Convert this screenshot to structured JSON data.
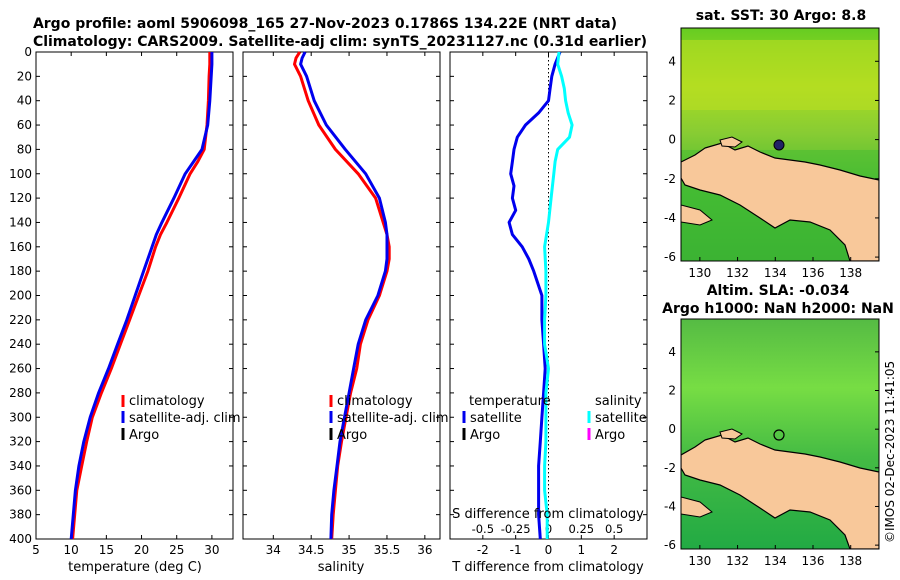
{
  "chart_data": {
    "type": "line",
    "title_line1": "Argo profile: aoml 5906098_165 27-Nov-2023 0.1786S 134.22E (NRT data)",
    "title_line2": "Climatology: CARS2009. Satellite-adj clim: synTS_20231127.nc (0.31d earlier)",
    "depth_ticks": [
      0,
      20,
      40,
      60,
      80,
      100,
      120,
      140,
      160,
      180,
      200,
      220,
      240,
      260,
      280,
      300,
      320,
      340,
      360,
      380,
      400
    ],
    "colors": {
      "climatology": "#ff0000",
      "satellite": "#0000ee",
      "argo": "#000000",
      "sat_salinity": "#00ffff",
      "argo_salinity": "#ff00ff"
    },
    "panels": [
      {
        "name": "temperature",
        "xlabel": "temperature (deg C)",
        "xlim": [
          5,
          33
        ],
        "ylim": [
          0,
          400
        ],
        "xticks": [
          5,
          10,
          15,
          20,
          25,
          30
        ],
        "legend": [
          "climatology",
          "satellite-adj. clim",
          "Argo"
        ],
        "series": [
          {
            "name": "climatology",
            "color": "#ff0000",
            "depth": [
              0,
              10,
              20,
              40,
              60,
              80,
              90,
              100,
              120,
              140,
              150,
              160,
              180,
              200,
              220,
              240,
              260,
              280,
              300,
              320,
              340,
              360,
              380,
              400
            ],
            "values": [
              29.7,
              29.7,
              29.6,
              29.5,
              29.3,
              28.9,
              28.0,
              26.9,
              25.3,
              23.6,
              22.7,
              22.0,
              20.9,
              19.6,
              18.3,
              17.0,
              15.7,
              14.3,
              13.0,
              12.2,
              11.5,
              10.8,
              10.5,
              10.2
            ]
          },
          {
            "name": "satellite",
            "color": "#0000ee",
            "depth": [
              0,
              10,
              20,
              40,
              60,
              80,
              90,
              100,
              120,
              140,
              150,
              160,
              180,
              200,
              220,
              240,
              260,
              280,
              300,
              320,
              340,
              360,
              380,
              400
            ],
            "values": [
              30.0,
              30.0,
              29.9,
              29.7,
              29.4,
              28.6,
              27.4,
              26.2,
              24.6,
              22.9,
              22.1,
              21.5,
              20.3,
              19.1,
              17.9,
              16.6,
              15.3,
              13.9,
              12.7,
              11.8,
              11.1,
              10.6,
              10.3,
              10.0
            ]
          }
        ]
      },
      {
        "name": "salinity",
        "xlabel": "salinity",
        "xlim": [
          33.6,
          36.2
        ],
        "ylim": [
          0,
          400
        ],
        "xticks": [
          34,
          34.5,
          35,
          35.5,
          36
        ],
        "xtick_labels": [
          "34",
          "34.5",
          "35",
          "35.5",
          "36"
        ],
        "legend": [
          "climatology",
          "satellite-adj. clim",
          "Argo"
        ],
        "series": [
          {
            "name": "climatology",
            "color": "#ff0000",
            "depth": [
              0,
              5,
              10,
              20,
              40,
              60,
              80,
              100,
              120,
              140,
              150,
              160,
              170,
              180,
              200,
              220,
              240,
              260,
              280,
              300,
              320,
              340,
              360,
              380,
              400
            ],
            "values": [
              34.35,
              34.3,
              34.28,
              34.36,
              34.46,
              34.6,
              34.82,
              35.12,
              35.35,
              35.45,
              35.5,
              35.53,
              35.53,
              35.5,
              35.4,
              35.25,
              35.15,
              35.1,
              35.02,
              34.96,
              34.9,
              34.85,
              34.82,
              34.79,
              34.77
            ]
          },
          {
            "name": "satellite",
            "color": "#0000ee",
            "depth": [
              0,
              5,
              10,
              20,
              40,
              60,
              80,
              100,
              120,
              140,
              150,
              160,
              170,
              180,
              200,
              220,
              240,
              260,
              280,
              300,
              320,
              340,
              360,
              380,
              400
            ],
            "values": [
              34.42,
              34.38,
              34.36,
              34.44,
              34.54,
              34.7,
              34.95,
              35.22,
              35.4,
              35.48,
              35.5,
              35.5,
              35.5,
              35.48,
              35.38,
              35.22,
              35.12,
              35.06,
              35.0,
              34.94,
              34.88,
              34.84,
              34.8,
              34.77,
              34.76
            ]
          }
        ]
      },
      {
        "name": "difference",
        "xlabel": "T difference from climatology",
        "xlabel_top": "S difference from climatology",
        "xlim": [
          -3,
          3
        ],
        "ylim": [
          0,
          400
        ],
        "xticks": [
          -2,
          -1,
          0,
          1,
          2
        ],
        "xtick_labels": [
          "-2",
          "-1",
          "0",
          "1",
          "2"
        ],
        "s_scale": 4,
        "s_ticks": [
          -0.5,
          -0.25,
          0,
          0.25,
          0.5
        ],
        "s_tick_labels": [
          "-0.5",
          "-0.25",
          "0",
          "0.25",
          "0.5"
        ],
        "legend_left_title": "temperature",
        "legend_right_title": "salinity",
        "legend_left": [
          "satellite",
          "Argo"
        ],
        "legend_right": [
          "satellite",
          "Argo"
        ],
        "series": [
          {
            "name": "T satellite",
            "color": "#0000ee",
            "depth": [
              0,
              10,
              20,
              30,
              40,
              50,
              60,
              70,
              80,
              90,
              100,
              110,
              120,
              130,
              140,
              150,
              160,
              170,
              180,
              200,
              220,
              240,
              260,
              280,
              300,
              320,
              340,
              360,
              380,
              400
            ],
            "values": [
              0.35,
              0.2,
              0.1,
              0.05,
              0.0,
              -0.3,
              -0.7,
              -0.95,
              -1.05,
              -1.1,
              -1.15,
              -1.05,
              -1.1,
              -1.0,
              -1.2,
              -1.1,
              -0.8,
              -0.6,
              -0.45,
              -0.2,
              -0.2,
              -0.15,
              -0.1,
              -0.15,
              -0.2,
              -0.25,
              -0.3,
              -0.3,
              -0.3,
              -0.25
            ]
          },
          {
            "name": "S satellite",
            "color": "#00ffff",
            "depth": [
              0,
              10,
              20,
              30,
              40,
              50,
              60,
              70,
              80,
              90,
              100,
              120,
              140,
              160,
              180,
              200,
              220,
              240,
              260,
              280,
              300,
              320,
              340,
              360,
              380,
              400
            ],
            "values": [
              0.08,
              0.07,
              0.1,
              0.12,
              0.13,
              0.15,
              0.18,
              0.16,
              0.07,
              0.05,
              0.04,
              0.02,
              0.0,
              -0.03,
              -0.02,
              -0.02,
              -0.03,
              -0.03,
              0.0,
              -0.02,
              -0.02,
              -0.02,
              -0.03,
              -0.03,
              -0.01,
              -0.01
            ]
          }
        ]
      }
    ],
    "maps": [
      {
        "title": "sat. SST: 30 Argo: 8.8",
        "xticks": [
          130,
          132,
          134,
          136,
          138
        ],
        "yticks": [
          4,
          2,
          0,
          -2,
          -4,
          -6
        ],
        "xlim": [
          129,
          139.5
        ],
        "ylim": [
          -6.2,
          5.7
        ],
        "argo_lon": 134.22,
        "argo_lat": -0.18
      },
      {
        "title": "Altim. SLA: -0.034",
        "subtitle": "Argo h1000: NaN h2000: NaN",
        "xticks": [
          130,
          132,
          134,
          136,
          138
        ],
        "yticks": [
          4,
          2,
          0,
          -2,
          -4,
          -6
        ],
        "xlim": [
          129,
          139.5
        ],
        "ylim": [
          -6.2,
          5.7
        ],
        "argo_lon": 134.22,
        "argo_lat": -0.18
      }
    ],
    "side_label": "©IMOS 02-Dec-2023 11:41:05"
  }
}
